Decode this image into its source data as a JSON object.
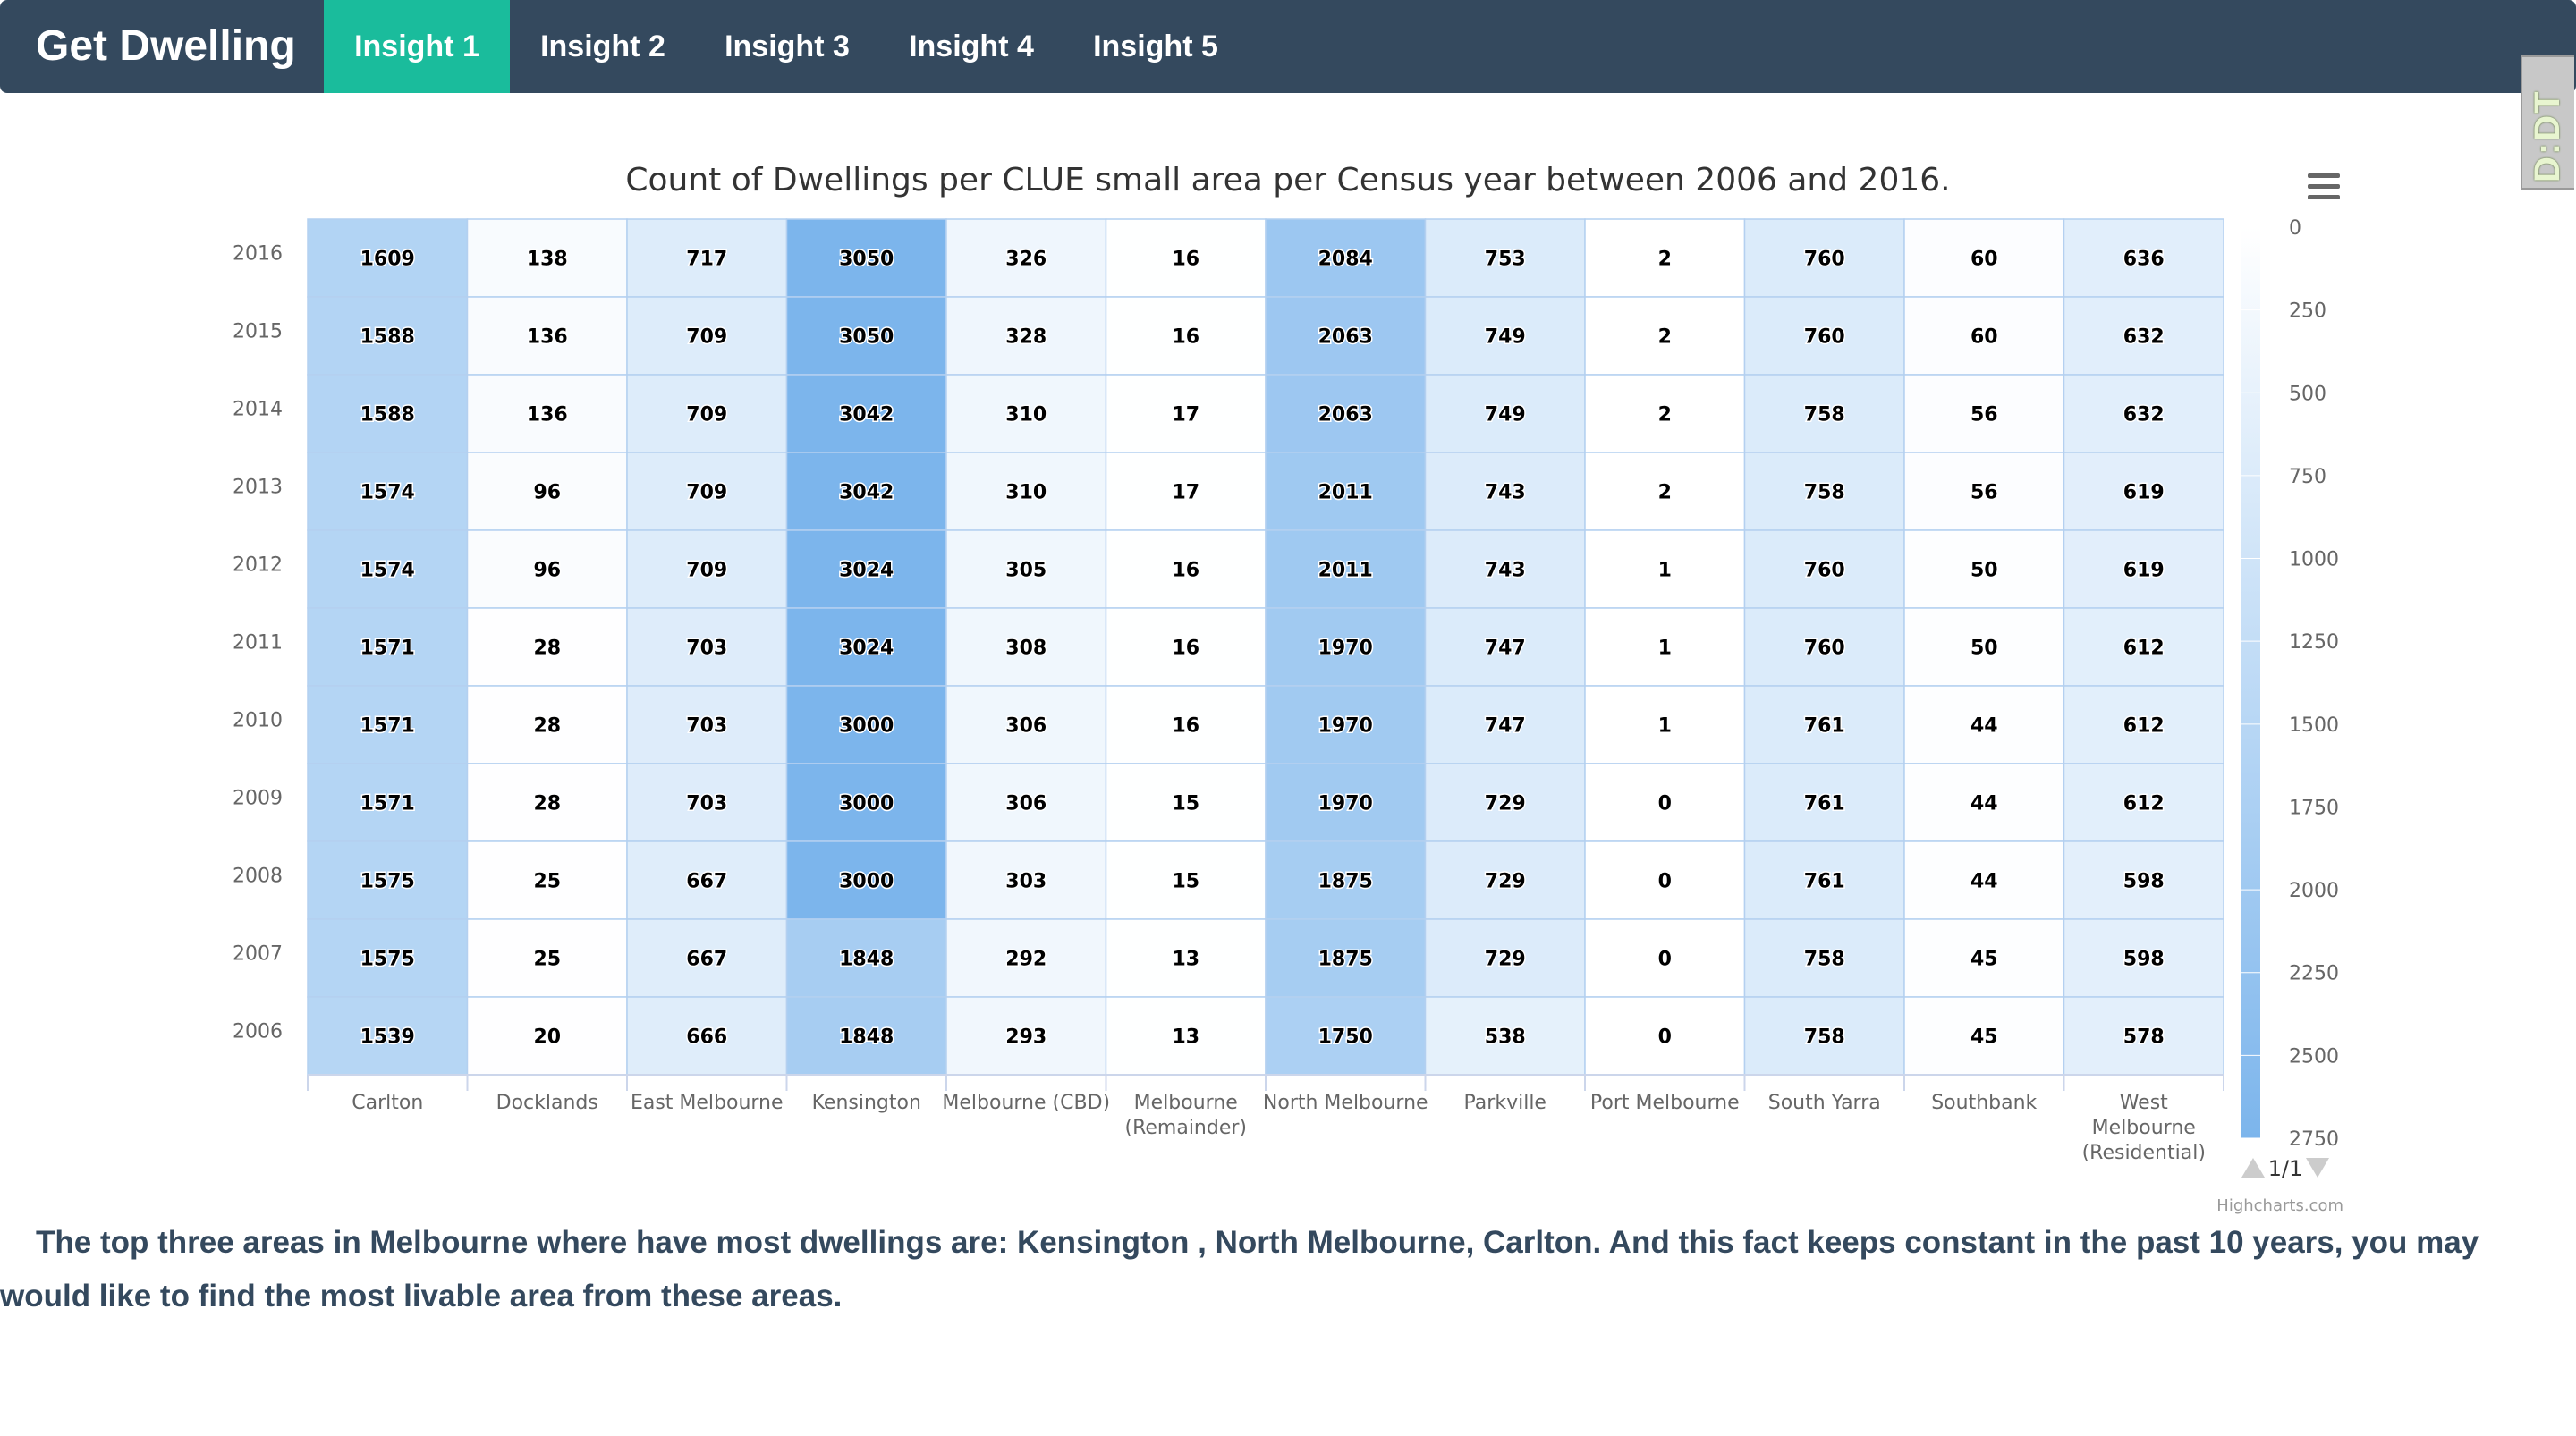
{
  "nav": {
    "brand": "Get Dwelling",
    "tabs": [
      {
        "label": "Insight 1",
        "active": true
      },
      {
        "label": "Insight 2",
        "active": false
      },
      {
        "label": "Insight 3",
        "active": false
      },
      {
        "label": "Insight 4",
        "active": false
      },
      {
        "label": "Insight 5",
        "active": false
      }
    ]
  },
  "side_badge": {
    "label": "D:DT"
  },
  "chart_data": {
    "type": "heatmap",
    "title": "Count of Dwellings per CLUE small area per Census year between 2006 and 2016.",
    "x_categories": [
      "Carlton",
      "Docklands",
      "East Melbourne",
      "Kensington",
      "Melbourne (CBD)",
      "Melbourne (Remainder)",
      "North Melbourne",
      "Parkville",
      "Port Melbourne",
      "South Yarra",
      "Southbank",
      "West Melbourne (Residential)"
    ],
    "y_categories": [
      "2016",
      "2015",
      "2014",
      "2013",
      "2012",
      "2011",
      "2010",
      "2009",
      "2008",
      "2007",
      "2006"
    ],
    "values": [
      [
        1609,
        138,
        717,
        3050,
        326,
        16,
        2084,
        753,
        2,
        760,
        60,
        636
      ],
      [
        1588,
        136,
        709,
        3050,
        328,
        16,
        2063,
        749,
        2,
        760,
        60,
        632
      ],
      [
        1588,
        136,
        709,
        3042,
        310,
        17,
        2063,
        749,
        2,
        758,
        56,
        632
      ],
      [
        1574,
        96,
        709,
        3042,
        310,
        17,
        2011,
        743,
        2,
        758,
        56,
        619
      ],
      [
        1574,
        96,
        709,
        3024,
        305,
        16,
        2011,
        743,
        1,
        760,
        50,
        619
      ],
      [
        1571,
        28,
        703,
        3024,
        308,
        16,
        1970,
        747,
        1,
        760,
        50,
        612
      ],
      [
        1571,
        28,
        703,
        3000,
        306,
        16,
        1970,
        747,
        1,
        761,
        44,
        612
      ],
      [
        1571,
        28,
        703,
        3000,
        306,
        15,
        1970,
        729,
        0,
        761,
        44,
        612
      ],
      [
        1575,
        25,
        667,
        3000,
        303,
        15,
        1875,
        729,
        0,
        761,
        44,
        598
      ],
      [
        1575,
        25,
        667,
        1848,
        292,
        13,
        1875,
        729,
        0,
        758,
        45,
        598
      ],
      [
        1539,
        20,
        666,
        1848,
        293,
        13,
        1750,
        538,
        0,
        758,
        45,
        578
      ]
    ],
    "color_axis": {
      "ticks": [
        0,
        250,
        500,
        750,
        1000,
        1250,
        1500,
        1750,
        2000,
        2250,
        2500,
        2750
      ],
      "min_color": "#ffffff",
      "max_color": "#7cb5ec"
    },
    "legend_position": "right",
    "legend_pager": "1/1",
    "credits": "Highcharts.com",
    "grid_color": "#b4d0f0"
  },
  "insight": {
    "text": "The top three areas in Melbourne where have most dwellings are: Kensington , North Melbourne, Carlton. And this fact keeps constant in the past 10 years, you may would like to find the most livable area from these areas."
  }
}
